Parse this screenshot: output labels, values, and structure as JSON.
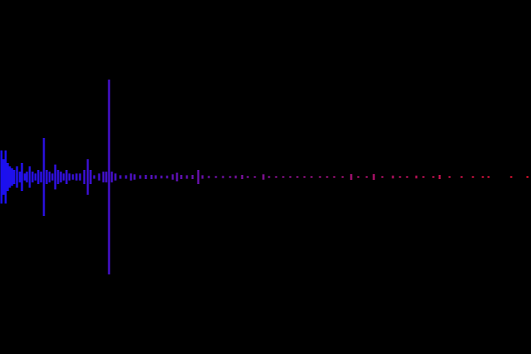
{
  "chart_data": {
    "type": "waveform",
    "colors": [
      "#1a10f0",
      "#e0102a"
    ],
    "xlim": [
      0,
      750
    ],
    "ylim": [
      -1,
      1
    ],
    "x": [
      2,
      5,
      8,
      11,
      14,
      17,
      20,
      24,
      28,
      31,
      35,
      38,
      42,
      46,
      50,
      54,
      58,
      62,
      66,
      70,
      74,
      78,
      82,
      86,
      90,
      94,
      98,
      103,
      108,
      113,
      119,
      124,
      128,
      133,
      140,
      146,
      150,
      154,
      158,
      163,
      170,
      178,
      185,
      190,
      198,
      206,
      214,
      220,
      228,
      236,
      244,
      250,
      256,
      264,
      272,
      280,
      286,
      295,
      305,
      315,
      325,
      333,
      342,
      350,
      360,
      372,
      380,
      390,
      400,
      410,
      420,
      430,
      440,
      452,
      462,
      472,
      484,
      496,
      506,
      518,
      528,
      540,
      555,
      565,
      575,
      588,
      598,
      612,
      621,
      635,
      652,
      668,
      682,
      690,
      722,
      745
    ],
    "values": [
      0.15,
      0.1,
      0.15,
      0.08,
      0.06,
      0.05,
      0.04,
      0.06,
      0.03,
      0.08,
      0.02,
      0.03,
      0.06,
      0.03,
      0.02,
      0.04,
      0.03,
      0.22,
      0.04,
      0.03,
      0.02,
      0.07,
      0.04,
      0.03,
      0.02,
      0.04,
      0.02,
      0.015,
      0.02,
      0.02,
      0.04,
      0.1,
      0.04,
      0.01,
      0.02,
      0.03,
      0.03,
      0.55,
      0.03,
      0.02,
      0.01,
      0.01,
      0.02,
      0.015,
      0.01,
      0.012,
      0.012,
      0.01,
      0.008,
      0.008,
      0.015,
      0.025,
      0.012,
      0.01,
      0.012,
      0.04,
      0.01,
      0.006,
      0.005,
      0.006,
      0.005,
      0.008,
      0.012,
      0.005,
      0.004,
      0.015,
      0.005,
      0.004,
      0.004,
      0.004,
      0.004,
      0.004,
      0.004,
      0.004,
      0.004,
      0.004,
      0.004,
      0.016,
      0.004,
      0.004,
      0.016,
      0.004,
      0.008,
      0.004,
      0.004,
      0.008,
      0.004,
      0.004,
      0.012,
      0.004,
      0.004,
      0.004,
      0.004,
      0.004,
      0.004,
      0.004
    ]
  }
}
